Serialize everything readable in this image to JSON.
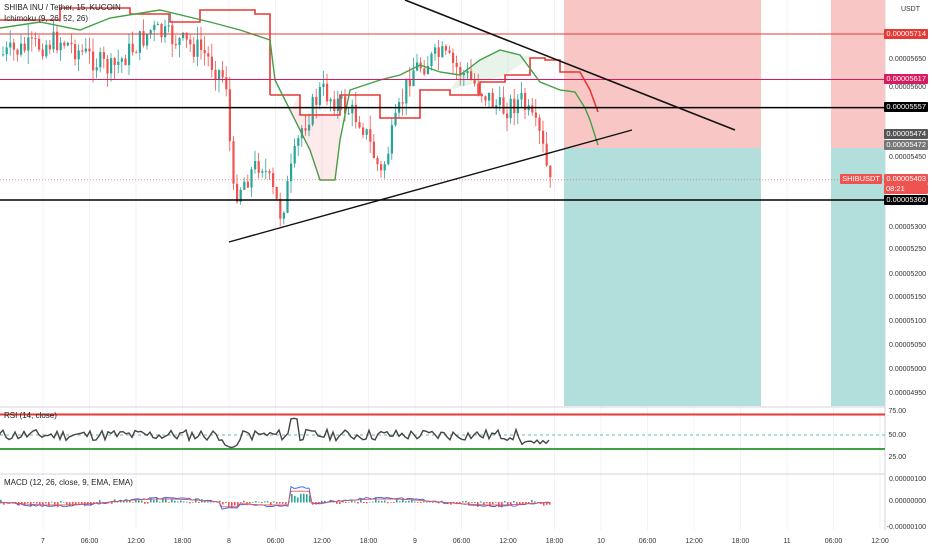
{
  "header": {
    "symbol_line": "SHIBA INU / Tether, 15, KUCOIN",
    "ichimoku_line": "Ichimoku (9, 26, 52, 26)",
    "rsi_line": "RSI (14, close)",
    "macd_line": "MACD (12, 26, close, 9, EMA, EMA)",
    "quote_currency": "USDT"
  },
  "price_tags": [
    {
      "label": "0.00005714",
      "color": "#e53935"
    },
    {
      "label": "0.00005617",
      "color": "#d81b60"
    },
    {
      "label": "0.00005557",
      "color": "#000000"
    },
    {
      "label": "0.00005474",
      "color": "#555555"
    },
    {
      "label": "0.00005472",
      "color": "#777777"
    },
    {
      "label": "0.00005403",
      "color": "#ef5350"
    },
    {
      "label": "0.00005360",
      "color": "#000000"
    }
  ],
  "live_tag": {
    "symbol": "SHIBUSDT",
    "countdown": "08:21",
    "color": "#ef5350"
  },
  "chart_data": [
    {
      "type": "candlestick",
      "panel": "price",
      "y_axis_ticks": [
        "0.00005650",
        "0.00005600",
        "0.00005450",
        "0.00005300",
        "0.00005250",
        "0.00005200",
        "0.00005150",
        "0.00005100",
        "0.00005050",
        "0.00005000",
        "0.00004950"
      ],
      "x_axis_ticks": [
        "7",
        "06:00",
        "12:00",
        "18:00",
        "8",
        "06:00",
        "12:00",
        "18:00",
        "9",
        "06:00",
        "12:00",
        "18:00",
        "10",
        "06:00",
        "12:00",
        "18:00",
        "11",
        "06:00",
        "12:00"
      ],
      "horizontal_levels": [
        {
          "value": 5.714e-05,
          "color": "#e53935"
        },
        {
          "value": 5.617e-05,
          "color": "#d81b60"
        },
        {
          "value": 5.557e-05,
          "color": "#000000"
        },
        {
          "value": 5.36e-05,
          "color": "#000000"
        }
      ],
      "last_price": 5.403e-05,
      "indicator": "Ichimoku (9, 26, 52, 26)",
      "drawings": [
        "descending resistance trendline",
        "ascending support trendline",
        "short position target/stop zones"
      ]
    },
    {
      "type": "line",
      "panel": "rsi",
      "title": "RSI (14, close)",
      "y_axis_ticks": [
        "75.00",
        "50.00",
        "25.00"
      ],
      "levels": [
        {
          "value": 75,
          "color": "#e53935"
        },
        {
          "value": 33,
          "color": "#43a047"
        }
      ],
      "ylim": [
        22,
        78
      ]
    },
    {
      "type": "bar",
      "panel": "macd",
      "title": "MACD (12, 26, close, 9, EMA, EMA)",
      "y_axis_ticks": [
        "0.00000100",
        "0.00000000",
        "-0.00000100"
      ]
    }
  ],
  "colors": {
    "up": "#26a69a",
    "down": "#ef5350",
    "kijun": "#e53935",
    "senkou_a": "#43a047",
    "stop_zone": "#f8c7c5",
    "target_zone": "#b2dfdb",
    "grid": "#f0f3fa"
  }
}
